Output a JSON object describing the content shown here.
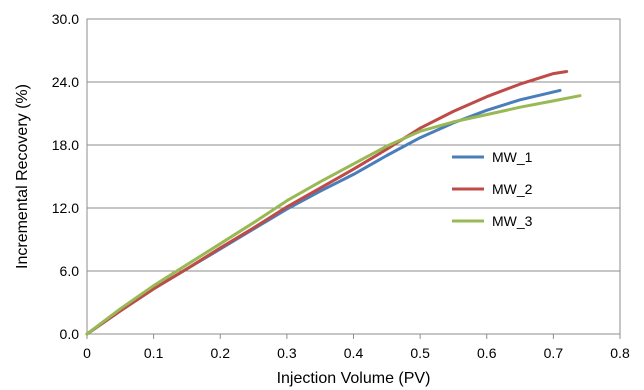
{
  "chart_data": {
    "type": "line",
    "xlabel": "Injection Volume (PV)",
    "ylabel": "Incremental Recovery (%)",
    "xlim": [
      0,
      0.8
    ],
    "ylim": [
      0,
      30
    ],
    "x_ticks": [
      "0",
      "0.1",
      "0.2",
      "0.3",
      "0.4",
      "0.5",
      "0.6",
      "0.7",
      "0.8"
    ],
    "y_ticks": [
      "0.0",
      "6.0",
      "12.0",
      "18.0",
      "24.0",
      "30.0"
    ],
    "grid": "horizontal",
    "legend_position": "right",
    "series": [
      {
        "name": "MW_1",
        "color": "#4a7ebb",
        "x": [
          0,
          0.05,
          0.1,
          0.15,
          0.2,
          0.25,
          0.3,
          0.35,
          0.4,
          0.45,
          0.5,
          0.55,
          0.6,
          0.65,
          0.71
        ],
        "y": [
          0,
          2.2,
          4.3,
          6.2,
          8.1,
          10.0,
          11.9,
          13.6,
          15.2,
          17.0,
          18.7,
          20.1,
          21.3,
          22.3,
          23.2
        ]
      },
      {
        "name": "MW_2",
        "color": "#be4b48",
        "x": [
          0,
          0.05,
          0.1,
          0.15,
          0.2,
          0.25,
          0.3,
          0.35,
          0.4,
          0.45,
          0.5,
          0.55,
          0.6,
          0.65,
          0.7,
          0.72
        ],
        "y": [
          0,
          2.2,
          4.3,
          6.2,
          8.2,
          10.1,
          12.1,
          13.9,
          15.7,
          17.6,
          19.6,
          21.2,
          22.6,
          23.8,
          24.8,
          25.0
        ]
      },
      {
        "name": "MW_3",
        "color": "#98b954",
        "x": [
          0,
          0.05,
          0.1,
          0.15,
          0.2,
          0.25,
          0.3,
          0.35,
          0.4,
          0.45,
          0.5,
          0.55,
          0.6,
          0.65,
          0.7,
          0.74
        ],
        "y": [
          0,
          2.4,
          4.6,
          6.6,
          8.6,
          10.6,
          12.7,
          14.5,
          16.2,
          17.9,
          19.3,
          20.2,
          20.9,
          21.6,
          22.2,
          22.7
        ]
      }
    ]
  }
}
